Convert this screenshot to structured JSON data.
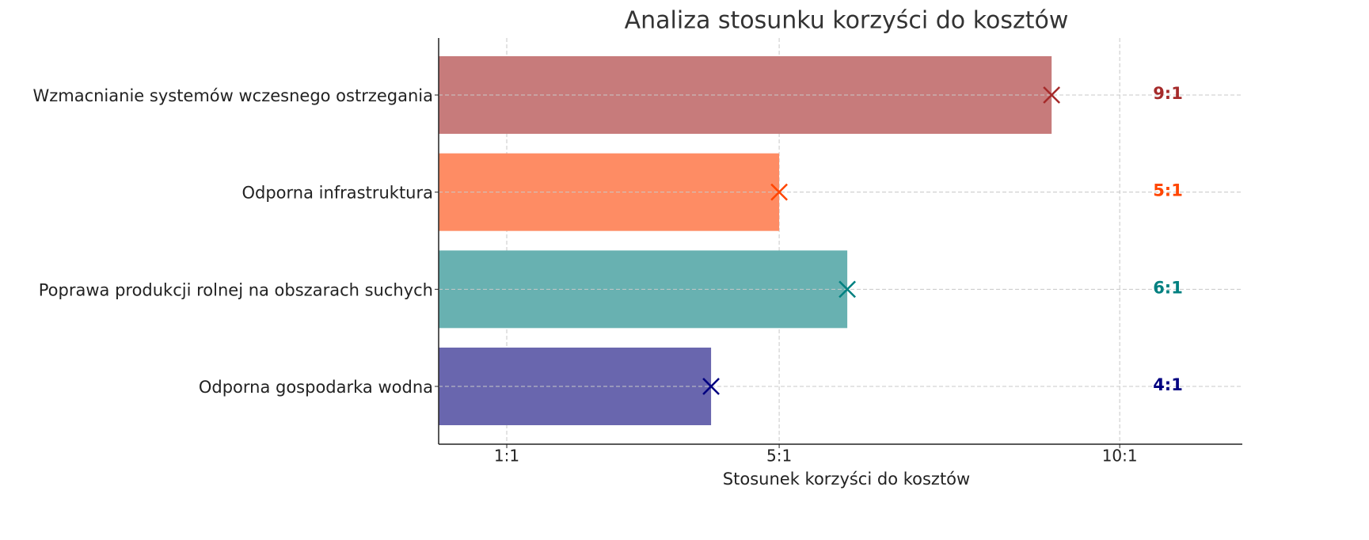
{
  "chart_data": {
    "type": "barh",
    "title": "Analiza stosunku korzyści do kosztów",
    "xlabel": "Stosunek korzyści do kosztów",
    "categories": [
      "Wzmacnianie systemów wczesnego ostrzegania",
      "Odporna infrastruktura",
      "Poprawa produkcji rolnej na obszarach suchych",
      "Odporna gospodarka wodna"
    ],
    "values": [
      9,
      5,
      6,
      4
    ],
    "value_labels": [
      "9:1",
      "5:1",
      "6:1",
      "4:1"
    ],
    "colors": [
      "#c77b7b",
      "#fe8c64",
      "#68b1b1",
      "#6966ae"
    ],
    "marker_colors": [
      "#a52a2a",
      "#ff4500",
      "#008080",
      "#000080"
    ],
    "xlim": [
      0,
      11.8
    ],
    "xticks": [
      {
        "value": 1,
        "label": "1:1"
      },
      {
        "value": 5,
        "label": "5:1"
      },
      {
        "value": 10,
        "label": "10:1"
      }
    ],
    "grid": true
  }
}
